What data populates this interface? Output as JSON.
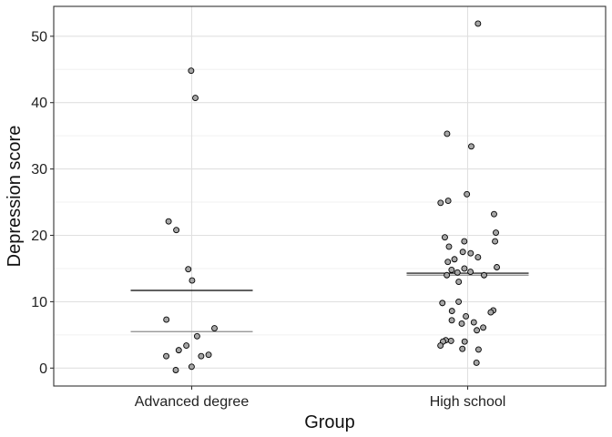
{
  "chart_data": {
    "type": "scatter",
    "title": "",
    "xlabel": "Group",
    "ylabel": "Depression score",
    "categories": [
      "Advanced degree",
      "High school"
    ],
    "ylim": [
      -2.7,
      54.5
    ],
    "yticks": [
      0,
      10,
      20,
      30,
      40,
      50
    ],
    "grid": true,
    "legend": "none",
    "series": [
      {
        "category": "Advanced degree",
        "values": [
          44.8,
          40.7,
          22.1,
          20.8,
          14.9,
          13.2,
          7.3,
          6.0,
          4.8,
          3.4,
          2.7,
          2.0,
          1.8,
          1.8,
          0.2,
          -0.3
        ],
        "mean": 11.7,
        "median": 5.5
      },
      {
        "category": "High school",
        "values": [
          51.9,
          35.3,
          33.4,
          26.2,
          25.2,
          24.9,
          23.2,
          20.4,
          19.7,
          19.1,
          19.1,
          18.3,
          17.5,
          17.3,
          16.7,
          16.4,
          16.0,
          15.2,
          15.0,
          14.8,
          14.5,
          14.4,
          14.0,
          14.0,
          13.0,
          10.0,
          9.8,
          8.7,
          8.6,
          8.4,
          7.8,
          7.2,
          6.9,
          6.7,
          6.1,
          5.7,
          4.2,
          4.1,
          4.0,
          4.0,
          3.4,
          2.9,
          2.8,
          0.8
        ],
        "mean": 14.3,
        "median": 14.0
      }
    ],
    "colors": {
      "point_fill": "#a6a6a6",
      "point_stroke": "#000000",
      "mean_line": "#000000",
      "median_line": "#8c8c8c",
      "grid_major": "#e0e0e0",
      "grid_minor": "#f0f0f0",
      "panel_border": "#333333"
    }
  }
}
